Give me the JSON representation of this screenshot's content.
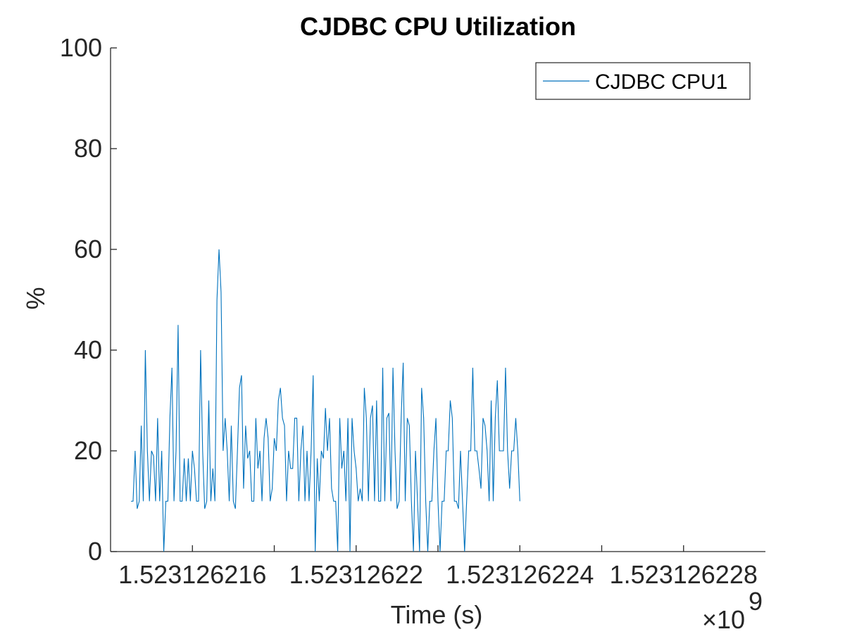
{
  "chart_data": {
    "type": "line",
    "title": "CJDBC CPU Utilization",
    "xlabel": "Time (s)",
    "ylabel": "%",
    "x_exponent_label": "×10",
    "x_exponent_power": "9",
    "xlim": [
      1523126214,
      1523126230
    ],
    "ylim": [
      0,
      100
    ],
    "x_ticks": [
      1523126216,
      1523126218,
      1523126220,
      1523126222,
      1523126224,
      1523126226,
      1523126228
    ],
    "x_tick_labels": [
      "1.523126216",
      "",
      "1.52312622",
      "",
      "1.523126224",
      "",
      "1.523126228"
    ],
    "y_ticks": [
      0,
      20,
      40,
      60,
      80,
      100
    ],
    "y_tick_labels": [
      "0",
      "20",
      "40",
      "60",
      "80",
      "100"
    ],
    "grid": false,
    "legend_position": "top-right",
    "x_start": 1523126214.5,
    "x_step": 0.05,
    "series": [
      {
        "name": "CJDBC CPU1",
        "color": "#0072BD",
        "values": [
          10,
          10,
          20,
          8.5,
          10,
          25,
          10,
          40,
          20,
          10,
          20,
          19,
          10,
          26.5,
          10,
          20,
          0,
          10,
          10,
          26.5,
          36.5,
          10,
          20,
          45,
          10,
          10,
          18.5,
          10,
          18.5,
          10,
          20,
          16.5,
          10,
          10,
          40,
          20,
          8.5,
          10,
          30,
          10,
          16.5,
          10,
          50,
          60,
          51.5,
          20,
          26.5,
          20,
          10,
          25,
          10,
          8.5,
          20,
          32.5,
          35,
          12.5,
          25,
          18.5,
          20,
          10,
          10,
          26.5,
          16.5,
          20,
          10,
          22.5,
          26.5,
          22.5,
          10,
          12.5,
          22.5,
          20,
          30,
          32.5,
          26.5,
          25,
          10,
          20,
          16.5,
          16.5,
          26.5,
          26.5,
          10,
          20,
          25,
          10,
          20,
          10,
          20,
          35,
          0,
          18.5,
          10,
          20,
          18.5,
          28.5,
          20,
          26.5,
          12.5,
          10,
          10,
          0,
          26.5,
          16.5,
          20,
          10,
          26.5,
          0,
          26.5,
          20,
          16.5,
          10,
          12.5,
          10,
          32.5,
          26.5,
          10,
          26.5,
          29,
          10,
          30,
          10,
          10,
          36.5,
          10,
          26.5,
          27.5,
          10,
          36.5,
          20,
          8.5,
          10,
          26.5,
          37.5,
          10,
          26.5,
          25,
          10,
          0,
          20,
          10,
          0,
          32.5,
          26.5,
          10,
          0,
          10,
          10,
          20,
          26.5,
          10,
          0,
          10,
          10,
          20,
          20,
          30,
          26.5,
          10,
          10,
          8.5,
          20,
          10,
          0,
          10,
          20,
          20,
          36.5,
          20,
          20,
          16.5,
          12.5,
          26.5,
          25,
          20,
          10,
          30,
          10,
          26.5,
          34,
          20,
          20,
          20,
          36.5,
          20,
          12.5,
          20,
          20,
          26.5,
          20,
          10
        ]
      }
    ]
  }
}
